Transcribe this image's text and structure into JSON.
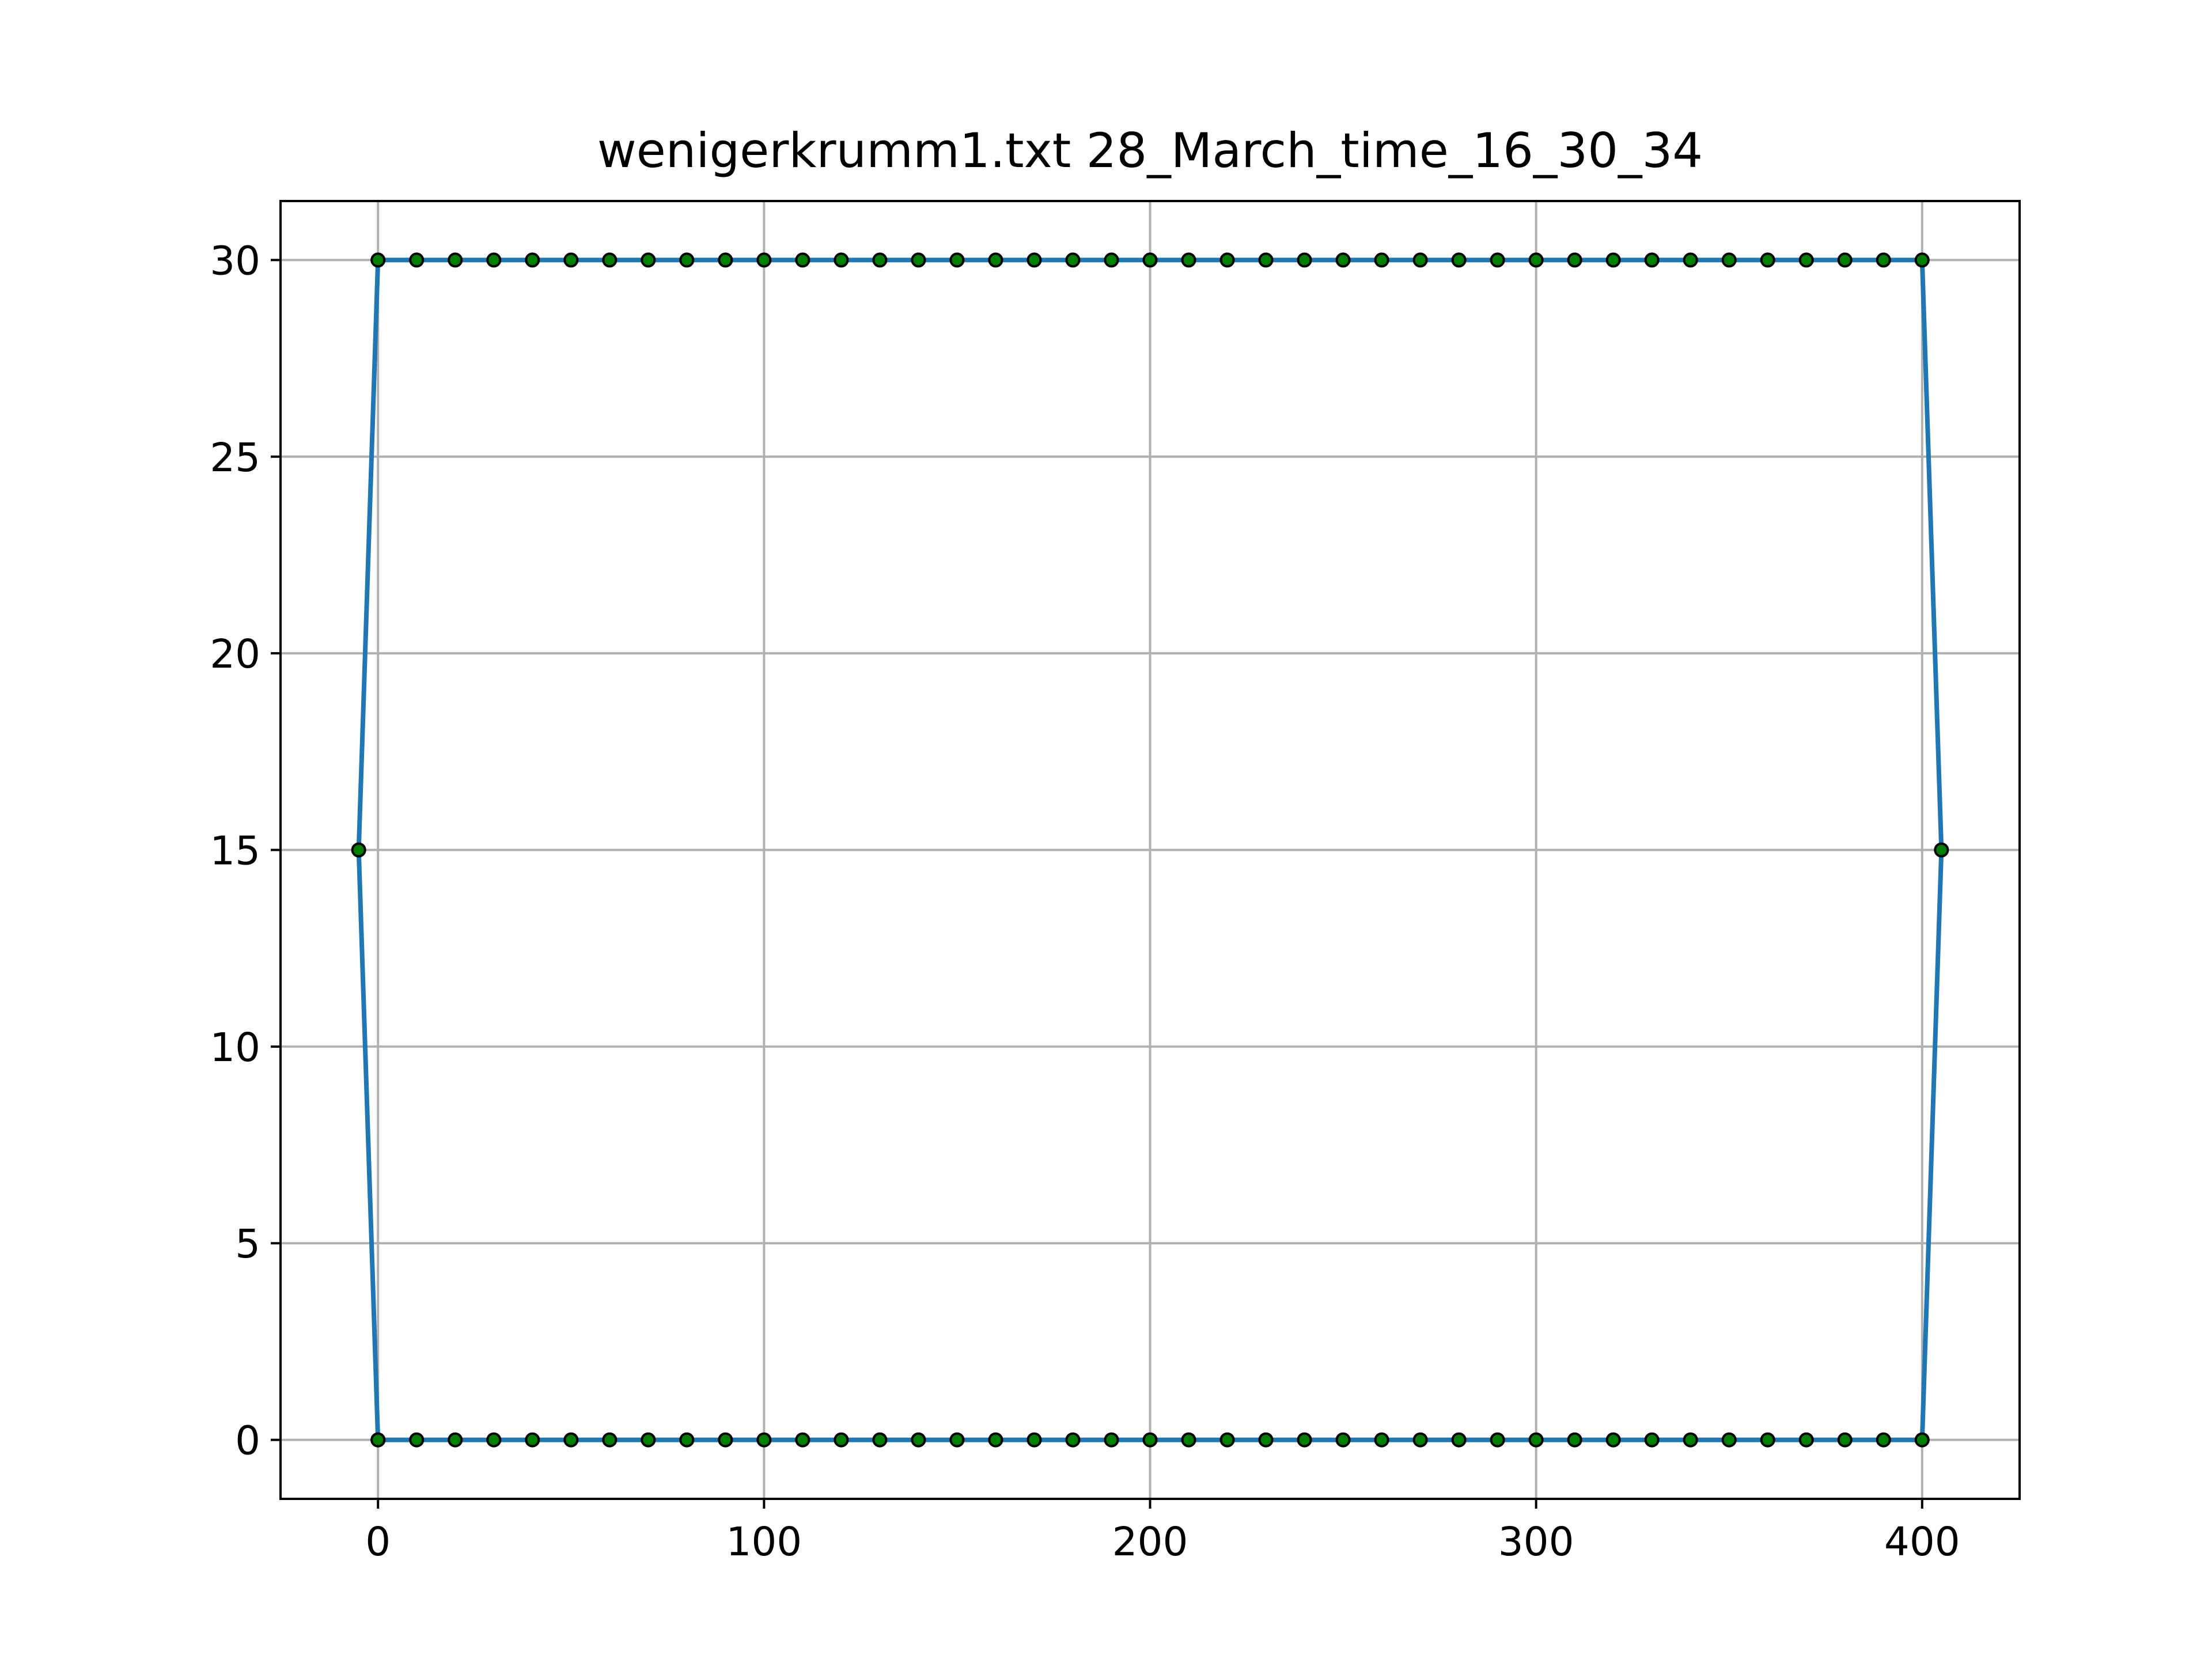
{
  "chart_data": {
    "type": "line",
    "title": "wenigerkrumm1.txt 28_March_time_16_30_34",
    "xlabel": "",
    "ylabel": "",
    "xlim": [
      -25.25,
      425.25
    ],
    "ylim": [
      -1.5,
      31.5
    ],
    "xticks": [
      0,
      100,
      200,
      300,
      400
    ],
    "yticks": [
      0,
      5,
      10,
      15,
      20,
      25,
      30
    ],
    "xtick_labels": [
      "0",
      "100",
      "200",
      "300",
      "400"
    ],
    "ytick_labels": [
      "0",
      "5",
      "10",
      "15",
      "20",
      "25",
      "30"
    ],
    "grid": true,
    "legend": null,
    "series": [
      {
        "line_color": "#1f77b4",
        "marker_face": "#008000",
        "marker_edge": "#000000",
        "x": [
          0,
          10,
          20,
          30,
          40,
          50,
          60,
          70,
          80,
          90,
          100,
          110,
          120,
          130,
          140,
          150,
          160,
          170,
          180,
          190,
          200,
          210,
          220,
          230,
          240,
          250,
          260,
          270,
          280,
          290,
          300,
          310,
          320,
          330,
          340,
          350,
          360,
          370,
          380,
          390,
          400,
          405,
          400,
          390,
          380,
          370,
          360,
          350,
          340,
          330,
          320,
          310,
          300,
          290,
          280,
          270,
          260,
          250,
          240,
          230,
          220,
          210,
          200,
          190,
          180,
          170,
          160,
          150,
          140,
          130,
          120,
          110,
          100,
          90,
          80,
          70,
          60,
          50,
          40,
          30,
          20,
          10,
          0,
          -5,
          0
        ],
        "y": [
          0,
          0,
          0,
          0,
          0,
          0,
          0,
          0,
          0,
          0,
          0,
          0,
          0,
          0,
          0,
          0,
          0,
          0,
          0,
          0,
          0,
          0,
          0,
          0,
          0,
          0,
          0,
          0,
          0,
          0,
          0,
          0,
          0,
          0,
          0,
          0,
          0,
          0,
          0,
          0,
          0,
          15,
          30,
          30,
          30,
          30,
          30,
          30,
          30,
          30,
          30,
          30,
          30,
          30,
          30,
          30,
          30,
          30,
          30,
          30,
          30,
          30,
          30,
          30,
          30,
          30,
          30,
          30,
          30,
          30,
          30,
          30,
          30,
          30,
          30,
          30,
          30,
          30,
          30,
          30,
          30,
          30,
          30,
          15,
          0
        ]
      }
    ]
  }
}
